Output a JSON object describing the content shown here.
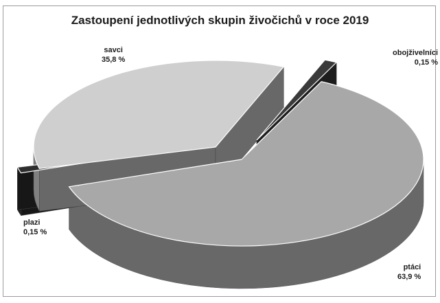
{
  "chart_data": {
    "type": "pie",
    "title": "Zastoupení jednotlivých skupin živočichů v roce 2019",
    "style": "3d-exploded",
    "slices": [
      {
        "name": "ptáci",
        "value": 63.9,
        "label": "63,9 %",
        "color": "#a8a8a8",
        "exploded": false
      },
      {
        "name": "savci",
        "value": 35.8,
        "label": "35,8 %",
        "color": "#cfcfcf",
        "exploded": true
      },
      {
        "name": "obojživelníci",
        "value": 0.15,
        "label": "0,15 %",
        "color": "#3a3a3a",
        "exploded": true
      },
      {
        "name": "plazi",
        "value": 0.15,
        "label": "0,15 %",
        "color": "#2e2e2e",
        "exploded": true
      }
    ]
  }
}
